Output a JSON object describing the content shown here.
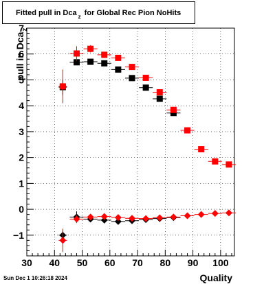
{
  "title": {
    "main": "Fitted pull in Dca",
    "sub": "z",
    "rest": " for Global Rec Pion NoHits"
  },
  "axes": {
    "ylabel_main": "pull in Dca",
    "ylabel_sub": "z",
    "xlabel": "Quality"
  },
  "timestamp": "Sun Dec  1 10:26:18 2024",
  "chart_data": {
    "type": "scatter",
    "xlim": [
      30,
      105
    ],
    "ylim": [
      -1.8,
      7
    ],
    "x_ticks": [
      30,
      40,
      50,
      60,
      70,
      80,
      90,
      100
    ],
    "y_ticks": [
      -1,
      0,
      1,
      2,
      3,
      4,
      5,
      6,
      7
    ],
    "grid": true,
    "series": [
      {
        "marker": "square",
        "color": "#000000",
        "points": [
          {
            "x": 43,
            "y": 4.72,
            "ex": 1.5,
            "ey": 0.3
          },
          {
            "x": 48,
            "y": 5.68,
            "ex": 2.5,
            "ey": 0.1
          },
          {
            "x": 53,
            "y": 5.7,
            "ex": 2.5,
            "ey": 0.1
          },
          {
            "x": 58,
            "y": 5.64,
            "ex": 2.5,
            "ey": 0.06
          },
          {
            "x": 63,
            "y": 5.4,
            "ex": 2.5,
            "ey": 0.06
          },
          {
            "x": 68,
            "y": 5.07,
            "ex": 2.5,
            "ey": 0.05
          },
          {
            "x": 73,
            "y": 4.7,
            "ex": 2.5,
            "ey": 0.05
          },
          {
            "x": 78,
            "y": 4.27,
            "ex": 2.5,
            "ey": 0.05
          },
          {
            "x": 83,
            "y": 3.72,
            "ex": 2.5,
            "ey": 0.05
          }
        ]
      },
      {
        "marker": "square",
        "color": "#ff0000",
        "points": [
          {
            "x": 43,
            "y": 4.75,
            "ex": 1.5,
            "ey": 0.65
          },
          {
            "x": 48,
            "y": 6.02,
            "ex": 2.5,
            "ey": 0.28
          },
          {
            "x": 53,
            "y": 6.2,
            "ex": 2.5,
            "ey": 0.14
          },
          {
            "x": 58,
            "y": 5.97,
            "ex": 2.5,
            "ey": 0.08
          },
          {
            "x": 63,
            "y": 5.85,
            "ex": 2.5,
            "ey": 0.07
          },
          {
            "x": 68,
            "y": 5.5,
            "ex": 2.5,
            "ey": 0.06
          },
          {
            "x": 73,
            "y": 5.08,
            "ex": 2.5,
            "ey": 0.05
          },
          {
            "x": 78,
            "y": 4.52,
            "ex": 2.5,
            "ey": 0.05
          },
          {
            "x": 83,
            "y": 3.84,
            "ex": 2.5,
            "ey": 0.05
          },
          {
            "x": 88,
            "y": 3.05,
            "ex": 2.5,
            "ey": 0.05
          },
          {
            "x": 93,
            "y": 2.32,
            "ex": 2.5,
            "ey": 0.06
          },
          {
            "x": 98,
            "y": 1.85,
            "ex": 2.5,
            "ey": 0.05
          },
          {
            "x": 103,
            "y": 1.73,
            "ex": 2.5,
            "ey": 0.05
          }
        ]
      },
      {
        "marker": "diamond",
        "color": "#000000",
        "points": [
          {
            "x": 43,
            "y": -1.0,
            "ex": 1.5,
            "ey": 0.18
          },
          {
            "x": 48,
            "y": -0.3,
            "ex": 2.5,
            "ey": 0.22
          },
          {
            "x": 53,
            "y": -0.38,
            "ex": 2.5,
            "ey": 0.08
          },
          {
            "x": 58,
            "y": -0.42,
            "ex": 2.5,
            "ey": 0.06
          },
          {
            "x": 63,
            "y": -0.47,
            "ex": 2.5,
            "ey": 0.05
          },
          {
            "x": 68,
            "y": -0.44,
            "ex": 2.5,
            "ey": 0.05
          },
          {
            "x": 73,
            "y": -0.4,
            "ex": 2.5,
            "ey": 0.05
          },
          {
            "x": 78,
            "y": -0.36,
            "ex": 2.5,
            "ey": 0.05
          },
          {
            "x": 83,
            "y": -0.32,
            "ex": 2.5,
            "ey": 0.05
          }
        ]
      },
      {
        "marker": "diamond",
        "color": "#ff0000",
        "points": [
          {
            "x": 43,
            "y": -1.2,
            "ex": 1.5,
            "ey": 0.45
          },
          {
            "x": 48,
            "y": -0.38,
            "ex": 2.5,
            "ey": 0.15
          },
          {
            "x": 53,
            "y": -0.3,
            "ex": 2.5,
            "ey": 0.07
          },
          {
            "x": 58,
            "y": -0.28,
            "ex": 2.5,
            "ey": 0.05
          },
          {
            "x": 63,
            "y": -0.32,
            "ex": 2.5,
            "ey": 0.05
          },
          {
            "x": 68,
            "y": -0.35,
            "ex": 2.5,
            "ey": 0.05
          },
          {
            "x": 73,
            "y": -0.36,
            "ex": 2.5,
            "ey": 0.05
          },
          {
            "x": 78,
            "y": -0.33,
            "ex": 2.5,
            "ey": 0.05
          },
          {
            "x": 83,
            "y": -0.3,
            "ex": 2.5,
            "ey": 0.05
          },
          {
            "x": 88,
            "y": -0.25,
            "ex": 2.5,
            "ey": 0.05
          },
          {
            "x": 93,
            "y": -0.2,
            "ex": 2.5,
            "ey": 0.05
          },
          {
            "x": 98,
            "y": -0.16,
            "ex": 2.5,
            "ey": 0.05
          },
          {
            "x": 103,
            "y": -0.14,
            "ex": 2.5,
            "ey": 0.05
          }
        ]
      }
    ]
  }
}
